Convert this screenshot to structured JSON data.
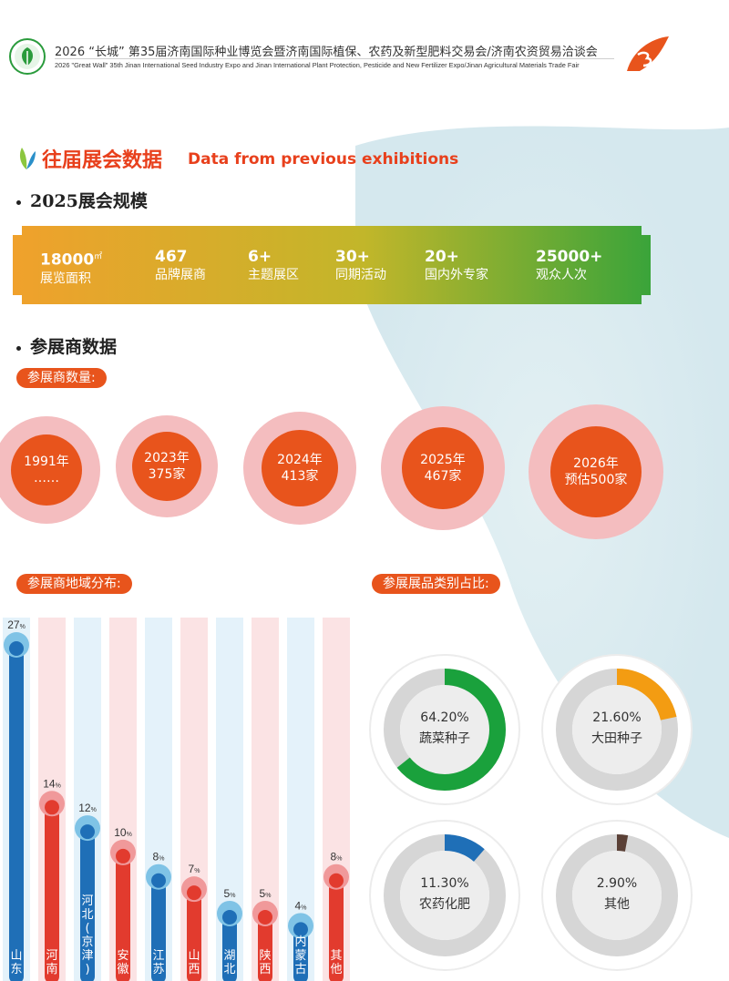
{
  "header": {
    "title_cn": "2026 “长城” 第35届济南国际种业博览会暨济南国际植保、农药及新型肥料交易会/济南农资贸易洽谈会",
    "title_en": "2026 \"Great Wall\" 35th  Jinan International Seed Industry Expo and  Jinan International Plant Protection, Pesticide and New Fertilizer Expo/Jinan Agricultural Materials Trade Fair"
  },
  "section": {
    "title_cn": "往届展会数据",
    "title_en": "Data from previous exhibitions"
  },
  "scale": {
    "heading": "2025展会规模",
    "stats": [
      {
        "value": "18000",
        "unit": "㎡",
        "label": "展览面积"
      },
      {
        "value": "467",
        "unit": "",
        "label": "品牌展商"
      },
      {
        "value": "6+",
        "unit": "",
        "label": "主题展区"
      },
      {
        "value": "30+",
        "unit": "",
        "label": "同期活动"
      },
      {
        "value": "20+",
        "unit": "",
        "label": "国内外专家"
      },
      {
        "value": "25000+",
        "unit": "",
        "label": "观众人次"
      }
    ]
  },
  "exhibitors": {
    "heading": "参展商数据",
    "count_pill": "参展商数量:",
    "years": [
      {
        "line1": "1991年",
        "line2": "……"
      },
      {
        "line1": "2023年",
        "line2": "375家"
      },
      {
        "line1": "2024年",
        "line2": "413家"
      },
      {
        "line1": "2025年",
        "line2": "467家"
      },
      {
        "line1": "2026年",
        "line2": "预估500家"
      }
    ],
    "region_pill": "参展商地域分布:",
    "category_pill": "参展展品类别占比:"
  },
  "colors": {
    "accent": "#e8541c",
    "blue_bar": "#1f6fb7",
    "red_bar": "#e23b2e",
    "blue_cap": "#7fc3e6",
    "red_cap": "#f0999a",
    "green": "#1aa13c",
    "orange": "#f39c12",
    "blue": "#1f6fb7",
    "brown": "#5a4036"
  },
  "chart_data": [
    {
      "type": "bar",
      "categories": [
        "山东",
        "河南",
        "河北(京津)",
        "安徽",
        "江苏",
        "山西",
        "湖北",
        "陕西",
        "内蒙古",
        "其他"
      ],
      "values": [
        27,
        14,
        12,
        10,
        8,
        7,
        5,
        5,
        4,
        8
      ],
      "unit": "%",
      "ylim": [
        0,
        27
      ]
    },
    {
      "type": "pie",
      "style": "donut",
      "categories": [
        "蔬菜种子",
        "大田种子",
        "农药化肥",
        "其他"
      ],
      "values": [
        64.2,
        21.6,
        11.3,
        2.9
      ],
      "labels": [
        "64.20%",
        "21.60%",
        "11.30%",
        "2.90%"
      ]
    }
  ]
}
